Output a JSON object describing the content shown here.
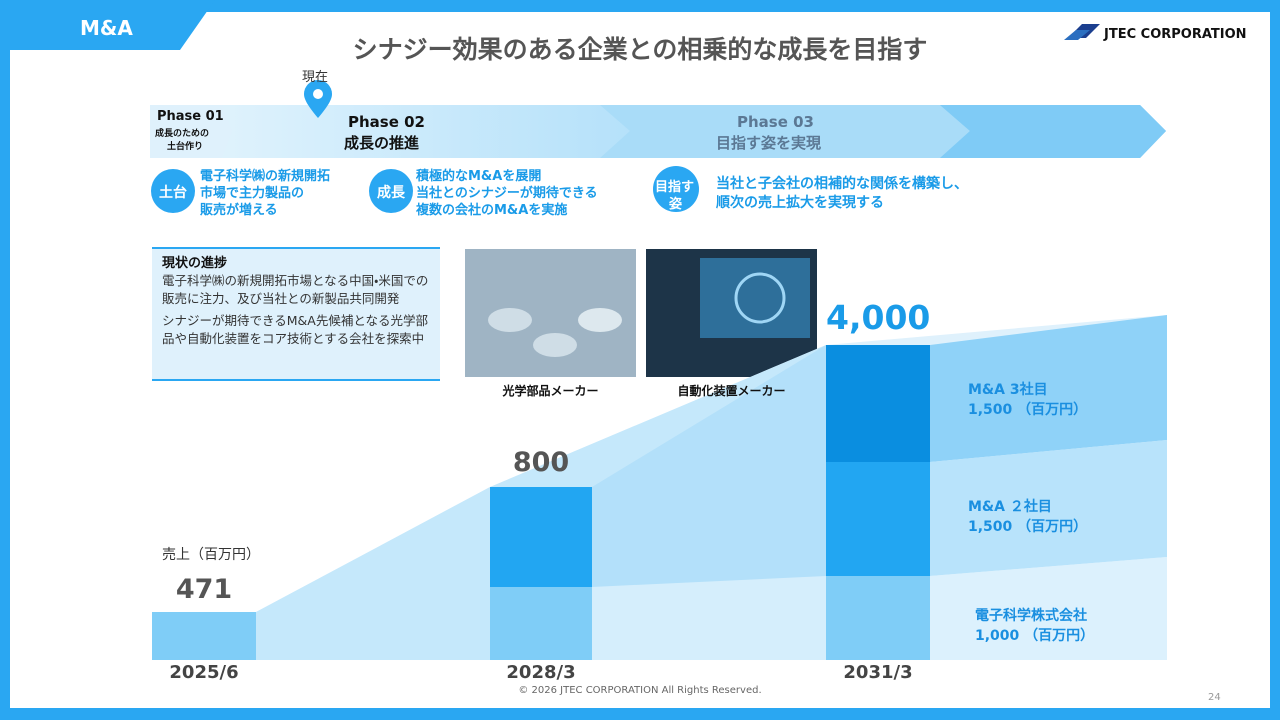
{
  "header": {
    "section": "M&A",
    "title": "シナジー効果のある企業との相乗的な成長を目指す",
    "logo": "JTEC CORPORATION"
  },
  "marker": "現在",
  "phases": [
    {
      "label": "Phase 01",
      "lines": [
        "成長のための",
        "土台作り"
      ]
    },
    {
      "label": "Phase 02",
      "lines": [
        "成長の推進"
      ]
    },
    {
      "label": "Phase 03",
      "lines": [
        "目指す姿を実現"
      ]
    }
  ],
  "strategies": [
    {
      "badge": [
        "土台"
      ],
      "lines": [
        "電子科学㈱の新規開拓",
        "市場で主力製品の",
        "販売が増える"
      ]
    },
    {
      "badge": [
        "成長"
      ],
      "lines": [
        "積極的なM&Aを展開",
        "当社とのシナジーが期待できる",
        "複数の会社のM&Aを実施"
      ]
    },
    {
      "badge": [
        "目指す",
        "姿"
      ],
      "lines": [
        "当社と子会社の相補的な関係を構築し、",
        "順次の売上拡大を実現する"
      ]
    }
  ],
  "progress": {
    "title": "現状の進捗",
    "paragraphs": [
      "電子科学㈱の新規開拓市場となる中国・米国での販売に注力、及び当社との新製品共同開発",
      "シナジーが期待できるM&A先候補となる光学部品や自動化装置をコア技術とする会社を探索中"
    ]
  },
  "images": [
    {
      "caption": "光学部品メーカー"
    },
    {
      "caption": "自動化装置メーカー"
    }
  ],
  "chart": {
    "unit_label": "売上（百万円）",
    "periods": [
      "2025/6",
      "2028/3",
      "2031/3"
    ],
    "totals": [
      "471",
      "800",
      "4,000"
    ],
    "segments": [
      {
        "name": "M&A 3社目",
        "value": "1,500 （百万円）"
      },
      {
        "name": "M&A ２社目",
        "value": "1,500 （百万円）"
      },
      {
        "name": "電子科学株式会社",
        "value": "1,000 （百万円）"
      }
    ]
  },
  "footer": {
    "copyright": "© 2026 JTEC CORPORATION All Rights Reserved.",
    "page": "24"
  }
}
